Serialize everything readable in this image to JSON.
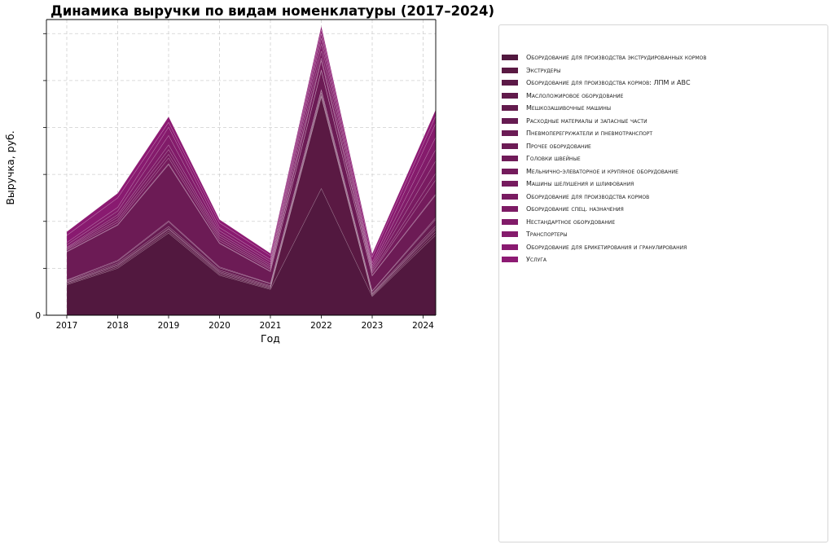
{
  "chart_data": {
    "type": "area",
    "stacked": true,
    "title": "Динамика выручки по видам номенклатуры (2017–2024)",
    "xlabel": "Год",
    "ylabel": "Выручка, руб.",
    "x": [
      "2017",
      "2018",
      "2019",
      "2020",
      "2021",
      "2022",
      "2023",
      "2024"
    ],
    "y_tick_labels": [
      "0"
    ],
    "ylim": [
      0,
      6.3
    ],
    "grid": true,
    "legend_position": "right",
    "series": [
      {
        "name": "Оборудование для производства экструдированных кормов",
        "color": "#52183f",
        "values": [
          0.65,
          1.0,
          1.75,
          0.85,
          0.55,
          2.7,
          0.4,
          1.45
        ]
      },
      {
        "name": "Экструдеры",
        "color": "#5a1943",
        "values": [
          0.02,
          0.03,
          0.04,
          0.03,
          0.02,
          1.95,
          0.02,
          0.05
        ]
      },
      {
        "name": "Оборудование для производства кормов: ЛПМ и АВС",
        "color": "#5c1947",
        "values": [
          0.02,
          0.03,
          0.04,
          0.03,
          0.02,
          0.02,
          0.02,
          0.05
        ]
      },
      {
        "name": "Маслоложировое оборудование",
        "color": "#611a4b",
        "values": [
          0.01,
          0.02,
          0.02,
          0.02,
          0.02,
          0.02,
          0.01,
          0.03
        ]
      },
      {
        "name": "Мешкозашивочные машины",
        "color": "#631b4d",
        "values": [
          0.02,
          0.03,
          0.04,
          0.03,
          0.02,
          0.05,
          0.02,
          0.04
        ]
      },
      {
        "name": "Расходные материалы и запасные части",
        "color": "#661b51",
        "values": [
          0.02,
          0.04,
          0.1,
          0.05,
          0.04,
          0.05,
          0.04,
          0.12
        ]
      },
      {
        "name": "Пневмоперегружатели и пневмотранспорт",
        "color": "#6b1b55",
        "values": [
          0.01,
          0.02,
          0.02,
          0.02,
          0.01,
          0.02,
          0.01,
          0.03
        ]
      },
      {
        "name": "Прочее оборудование",
        "color": "#6c1b55",
        "values": [
          0.6,
          0.75,
          1.2,
          0.5,
          0.25,
          0.4,
          0.32,
          0.45
        ]
      },
      {
        "name": "Головки швейные",
        "color": "#701b59",
        "values": [
          0.01,
          0.01,
          0.02,
          0.01,
          0.01,
          0.02,
          0.01,
          0.02
        ]
      },
      {
        "name": "Мельнично-элеваторное и крупяное оборудование",
        "color": "#741b5c",
        "values": [
          0.03,
          0.05,
          0.12,
          0.05,
          0.04,
          0.2,
          0.05,
          0.25
        ]
      },
      {
        "name": "Машины шелушения и шлифования",
        "color": "#771b5f",
        "values": [
          0.02,
          0.05,
          0.08,
          0.05,
          0.03,
          0.05,
          0.03,
          0.12
        ]
      },
      {
        "name": "Оборудование для производства кормов",
        "color": "#791b61",
        "values": [
          0.02,
          0.06,
          0.1,
          0.05,
          0.04,
          0.15,
          0.04,
          0.22
        ]
      },
      {
        "name": "Оборудование спец. назначения",
        "color": "#7d1b65",
        "values": [
          0.02,
          0.05,
          0.1,
          0.05,
          0.04,
          0.15,
          0.04,
          0.2
        ]
      },
      {
        "name": "Нестандартное оборудование",
        "color": "#811b69",
        "values": [
          0.05,
          0.08,
          0.2,
          0.06,
          0.05,
          0.12,
          0.05,
          0.22
        ]
      },
      {
        "name": "Транспортеры",
        "color": "#851b6c",
        "values": [
          0.05,
          0.08,
          0.18,
          0.07,
          0.05,
          0.1,
          0.06,
          0.25
        ]
      },
      {
        "name": "Оборудование для брикетирования и гранулирования",
        "color": "#891a70",
        "values": [
          0.15,
          0.2,
          0.1,
          0.1,
          0.08,
          0.08,
          0.12,
          0.15
        ]
      },
      {
        "name": "Услуга",
        "color": "#8d1a73",
        "values": [
          0.08,
          0.1,
          0.12,
          0.07,
          0.05,
          0.08,
          0.07,
          0.12
        ]
      }
    ]
  }
}
